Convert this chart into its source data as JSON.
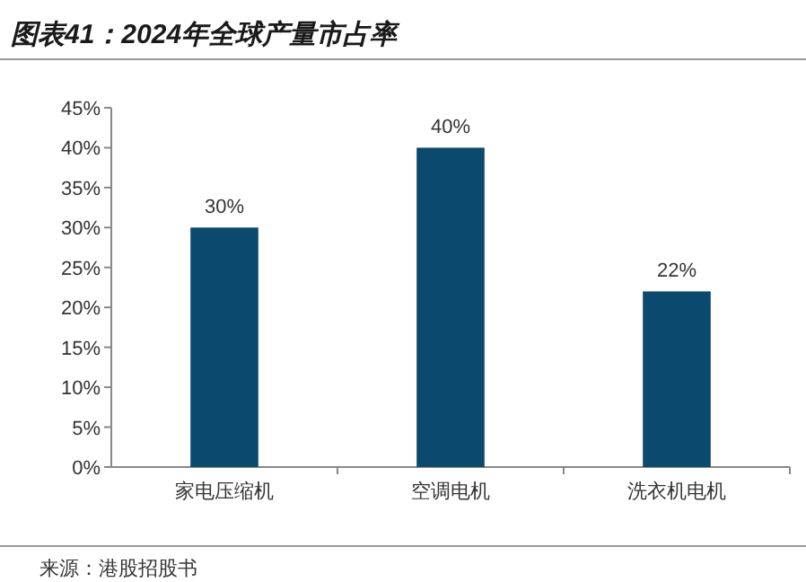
{
  "chart_data": {
    "type": "bar",
    "title": "图表41：2024年全球产量市占率",
    "categories": [
      "家电压缩机",
      "空调电机",
      "洗衣机电机"
    ],
    "values": [
      30,
      40,
      22
    ],
    "value_labels": [
      "30%",
      "40%",
      "22%"
    ],
    "color": "#0b4a6e",
    "ylim": [
      0,
      45
    ],
    "yticks": [
      {
        "value": 0,
        "label": "0%"
      },
      {
        "value": 5,
        "label": "5%"
      },
      {
        "value": 10,
        "label": "10%"
      },
      {
        "value": 15,
        "label": "15%"
      },
      {
        "value": 20,
        "label": "20%"
      },
      {
        "value": 25,
        "label": "25%"
      },
      {
        "value": 30,
        "label": "30%"
      },
      {
        "value": 35,
        "label": "35%"
      },
      {
        "value": 40,
        "label": "40%"
      },
      {
        "value": 45,
        "label": "45%"
      }
    ],
    "grid": false,
    "annotations": [
      "来源：港股招股书"
    ]
  }
}
